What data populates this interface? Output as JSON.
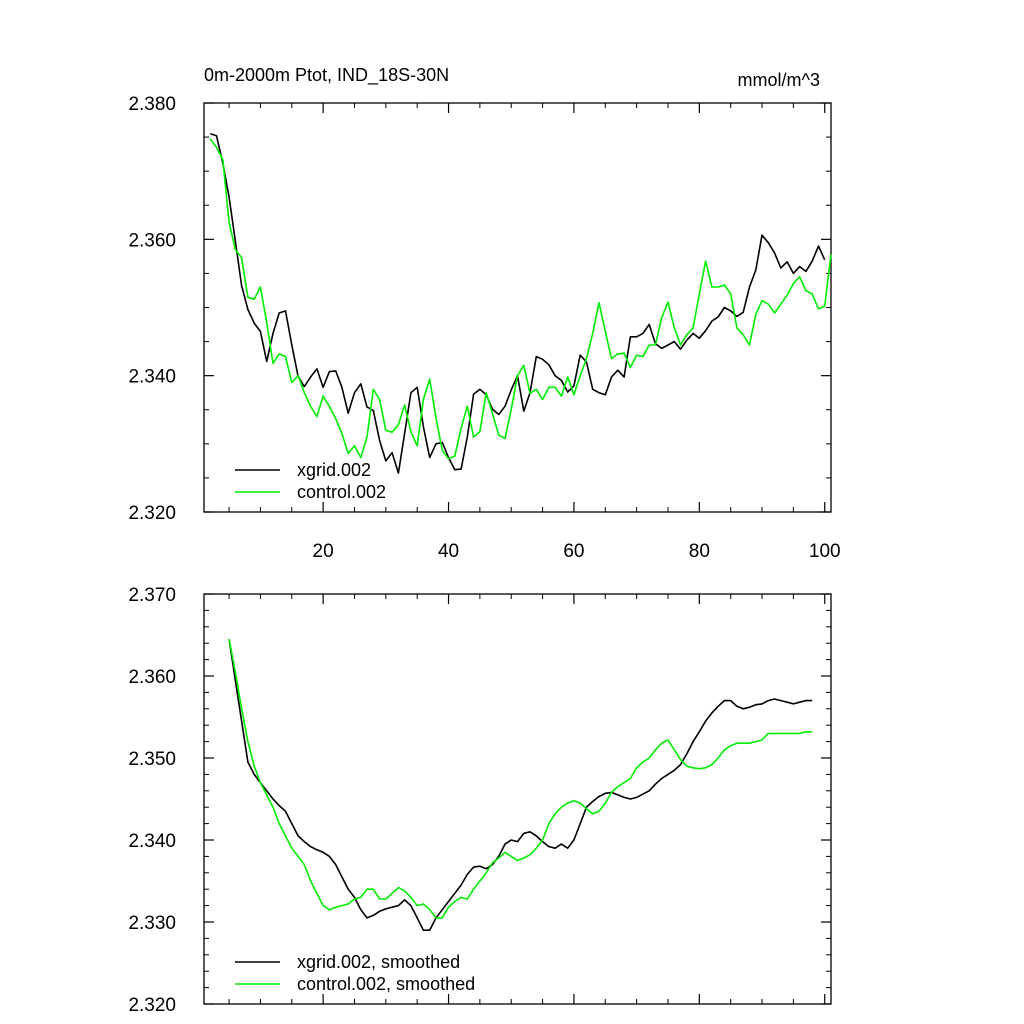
{
  "colors": {
    "xgrid": "#000000",
    "control": "#00ee00",
    "axis": "#000000",
    "background": "#ffffff"
  },
  "chart_data": [
    {
      "type": "line",
      "title": "0m-2000m Ptot, IND_18S-30N",
      "units": "mmol/m^3",
      "xlabel": "",
      "ylabel": "",
      "xlim": [
        1,
        101
      ],
      "ylim": [
        2.32,
        2.38
      ],
      "xticks": [
        20,
        40,
        60,
        80,
        100
      ],
      "xtick_labels": [
        "20",
        "40",
        "60",
        "80",
        "100"
      ],
      "yticks": [
        2.32,
        2.34,
        2.36,
        2.38
      ],
      "ytick_labels": [
        "2.320",
        "2.340",
        "2.360",
        "2.380"
      ],
      "legend_position": "bottom-left",
      "series": [
        {
          "name": "xgrid.002",
          "color": "#000000",
          "x": [
            2,
            3,
            4,
            5,
            6,
            7,
            8,
            9,
            10,
            11,
            12,
            13,
            14,
            15,
            16,
            17,
            18,
            19,
            20,
            21,
            22,
            23,
            24,
            25,
            26,
            27,
            28,
            29,
            30,
            31,
            32,
            33,
            34,
            35,
            36,
            37,
            38,
            39,
            40,
            41,
            42,
            43,
            44,
            45,
            46,
            47,
            48,
            49,
            50,
            51,
            52,
            53,
            54,
            55,
            56,
            57,
            58,
            59,
            60,
            61,
            62,
            63,
            64,
            65,
            66,
            67,
            68,
            69,
            70,
            71,
            72,
            73,
            74,
            75,
            76,
            77,
            78,
            79,
            80,
            81,
            82,
            83,
            84,
            85,
            86,
            87,
            88,
            89,
            90,
            91,
            92,
            93,
            94,
            95,
            96,
            97,
            98,
            99,
            100
          ],
          "values": [
            2.3755,
            2.3752,
            2.3712,
            2.3662,
            2.3598,
            2.3532,
            2.3497,
            2.3477,
            2.3465,
            2.3421,
            2.3462,
            2.3492,
            2.3495,
            2.3445,
            2.3399,
            2.3384,
            2.3398,
            2.341,
            2.3383,
            2.3406,
            2.3407,
            2.3383,
            2.3345,
            2.3375,
            2.3388,
            2.3354,
            2.3349,
            2.3305,
            2.3275,
            2.3287,
            2.3257,
            2.3315,
            2.3375,
            2.3383,
            2.3325,
            2.328,
            2.33,
            2.3302,
            2.328,
            2.3262,
            2.3263,
            2.331,
            2.3373,
            2.338,
            2.3372,
            2.3351,
            2.3343,
            2.3355,
            2.3379,
            2.34,
            2.3348,
            2.3375,
            2.3428,
            2.3424,
            2.3416,
            2.34,
            2.3393,
            2.3376,
            2.3385,
            2.343,
            2.342,
            2.338,
            2.3375,
            2.3372,
            2.3398,
            2.3408,
            2.3398,
            2.3457,
            2.3457,
            2.3462,
            2.3475,
            2.3447,
            2.344,
            2.3445,
            2.345,
            2.3439,
            2.3452,
            2.3462,
            2.3455,
            2.3466,
            2.348,
            2.3486,
            2.35,
            2.3495,
            2.3487,
            2.3493,
            2.353,
            2.3555,
            2.3606,
            2.3595,
            2.358,
            2.3558,
            2.3567,
            2.355,
            2.356,
            2.3553,
            2.3568,
            2.359,
            2.357
          ]
        },
        {
          "name": "control.002",
          "color": "#00ee00",
          "x": [
            2,
            3,
            4,
            5,
            6,
            7,
            8,
            9,
            10,
            11,
            12,
            13,
            14,
            15,
            16,
            17,
            18,
            19,
            20,
            21,
            22,
            23,
            24,
            25,
            26,
            27,
            28,
            29,
            30,
            31,
            32,
            33,
            34,
            35,
            36,
            37,
            38,
            39,
            40,
            41,
            42,
            43,
            44,
            45,
            46,
            47,
            48,
            49,
            50,
            51,
            52,
            53,
            54,
            55,
            56,
            57,
            58,
            59,
            60,
            61,
            62,
            63,
            64,
            65,
            66,
            67,
            68,
            69,
            70,
            71,
            72,
            73,
            74,
            75,
            76,
            77,
            78,
            79,
            80,
            81,
            82,
            83,
            84,
            85,
            86,
            87,
            88,
            89,
            90,
            91,
            92,
            93,
            94,
            95,
            96,
            97,
            98,
            99,
            100,
            101
          ],
          "values": [
            2.3747,
            2.3735,
            2.3717,
            2.3625,
            2.3585,
            2.3573,
            2.3515,
            2.3512,
            2.353,
            2.3478,
            2.3418,
            2.3432,
            2.3428,
            2.339,
            2.34,
            2.3375,
            2.3355,
            2.334,
            2.337,
            2.3355,
            2.3337,
            2.3315,
            2.3286,
            2.3297,
            2.328,
            2.331,
            2.338,
            2.3365,
            2.332,
            2.3317,
            2.3328,
            2.3357,
            2.3318,
            2.3297,
            2.3365,
            2.3395,
            2.3338,
            2.329,
            2.3278,
            2.3282,
            2.3323,
            2.3355,
            2.331,
            2.3318,
            2.3375,
            2.3345,
            2.3313,
            2.3308,
            2.335,
            2.34,
            2.3415,
            2.3374,
            2.338,
            2.3365,
            2.3383,
            2.3383,
            2.337,
            2.3398,
            2.3372,
            2.34,
            2.3425,
            2.3462,
            2.3507,
            2.3465,
            2.3425,
            2.3432,
            2.3433,
            2.3412,
            2.343,
            2.3428,
            2.3445,
            2.3445,
            2.3485,
            2.3508,
            2.347,
            2.3445,
            2.346,
            2.347,
            2.352,
            2.3568,
            2.353,
            2.353,
            2.3533,
            2.352,
            2.347,
            2.346,
            2.3445,
            2.349,
            2.351,
            2.3505,
            2.3492,
            2.3505,
            2.3518,
            2.3535,
            2.3545,
            2.3525,
            2.352,
            2.3498,
            2.3502,
            2.3578
          ]
        }
      ]
    },
    {
      "type": "line",
      "title": "",
      "xlabel": "",
      "ylabel": "",
      "xlim": [
        1,
        101
      ],
      "ylim": [
        2.32,
        2.37
      ],
      "xticks": [
        20,
        40,
        60,
        80,
        100
      ],
      "xtick_labels": [],
      "yticks": [
        2.32,
        2.33,
        2.34,
        2.35,
        2.36,
        2.37
      ],
      "ytick_labels": [
        "2.320",
        "2.330",
        "2.340",
        "2.350",
        "2.360",
        "2.370"
      ],
      "legend_position": "bottom-left",
      "series": [
        {
          "name": "xgrid.002, smoothed",
          "color": "#000000",
          "x": [
            5,
            6,
            7,
            8,
            9,
            10,
            11,
            12,
            13,
            14,
            15,
            16,
            17,
            18,
            19,
            20,
            21,
            22,
            23,
            24,
            25,
            26,
            27,
            28,
            29,
            30,
            31,
            32,
            33,
            34,
            35,
            36,
            37,
            38,
            39,
            40,
            41,
            42,
            43,
            44,
            45,
            46,
            47,
            48,
            49,
            50,
            51,
            52,
            53,
            54,
            55,
            56,
            57,
            58,
            59,
            60,
            61,
            62,
            63,
            64,
            65,
            66,
            67,
            68,
            69,
            70,
            71,
            72,
            73,
            74,
            75,
            76,
            77,
            78,
            79,
            80,
            81,
            82,
            83,
            84,
            85,
            86,
            87,
            88,
            89,
            90,
            91,
            92,
            93,
            94,
            95,
            96,
            97,
            98
          ],
          "values": [
            2.3645,
            2.3595,
            2.3545,
            2.3495,
            2.348,
            2.347,
            2.346,
            2.345,
            2.3442,
            2.3435,
            2.342,
            2.3405,
            2.3398,
            2.3392,
            2.3388,
            2.3385,
            2.338,
            2.337,
            2.3355,
            2.334,
            2.333,
            2.3315,
            2.3305,
            2.3308,
            2.3313,
            2.3316,
            2.3318,
            2.332,
            2.3327,
            2.332,
            2.3305,
            2.329,
            2.329,
            2.3305,
            2.3315,
            2.3325,
            2.3335,
            2.3345,
            2.3358,
            2.3367,
            2.3368,
            2.3365,
            2.337,
            2.338,
            2.3395,
            2.34,
            2.3398,
            2.3408,
            2.341,
            2.3405,
            2.3398,
            2.3392,
            2.339,
            2.3395,
            2.339,
            2.34,
            2.342,
            2.344,
            2.3447,
            2.3453,
            2.3457,
            2.3458,
            2.3455,
            2.3452,
            2.345,
            2.3452,
            2.3456,
            2.346,
            2.3468,
            2.3475,
            2.348,
            2.3485,
            2.3492,
            2.3505,
            2.352,
            2.3532,
            2.3545,
            2.3555,
            2.3563,
            2.357,
            2.357,
            2.3563,
            2.356,
            2.3562,
            2.3565,
            2.3566,
            2.357,
            2.3572,
            2.357,
            2.3568,
            2.3566,
            2.3568,
            2.357,
            2.357
          ]
        },
        {
          "name": "control.002, smoothed",
          "color": "#00ee00",
          "x": [
            5,
            6,
            7,
            8,
            9,
            10,
            11,
            12,
            13,
            14,
            15,
            16,
            17,
            18,
            19,
            20,
            21,
            22,
            23,
            24,
            25,
            26,
            27,
            28,
            29,
            30,
            31,
            32,
            33,
            34,
            35,
            36,
            37,
            38,
            39,
            40,
            41,
            42,
            43,
            44,
            45,
            46,
            47,
            48,
            49,
            50,
            51,
            52,
            53,
            54,
            55,
            56,
            57,
            58,
            59,
            60,
            61,
            62,
            63,
            64,
            65,
            66,
            67,
            68,
            69,
            70,
            71,
            72,
            73,
            74,
            75,
            76,
            77,
            78,
            79,
            80,
            81,
            82,
            83,
            84,
            85,
            86,
            87,
            88,
            89,
            90,
            91,
            92,
            93,
            94,
            95,
            96,
            97,
            98
          ],
          "values": [
            2.3645,
            2.3605,
            2.356,
            2.352,
            2.349,
            2.347,
            2.3455,
            2.344,
            2.342,
            2.3405,
            2.339,
            2.338,
            2.337,
            2.335,
            2.3335,
            2.332,
            2.3315,
            2.3318,
            2.332,
            2.3322,
            2.3328,
            2.333,
            2.334,
            2.334,
            2.3328,
            2.3328,
            2.3335,
            2.3342,
            2.3338,
            2.333,
            2.332,
            2.3322,
            2.3315,
            2.3305,
            2.3305,
            2.3318,
            2.3325,
            2.333,
            2.3328,
            2.334,
            2.335,
            2.336,
            2.3372,
            2.3378,
            2.3385,
            2.338,
            2.3375,
            2.3378,
            2.3382,
            2.339,
            2.34,
            2.342,
            2.3432,
            2.344,
            2.3445,
            2.3448,
            2.3445,
            2.3438,
            2.3432,
            2.3435,
            2.3445,
            2.3458,
            2.3465,
            2.347,
            2.3475,
            2.3488,
            2.3495,
            2.35,
            2.351,
            2.3518,
            2.3522,
            2.351,
            2.3498,
            2.349,
            2.3488,
            2.3487,
            2.3488,
            2.3492,
            2.35,
            2.351,
            2.3515,
            2.3518,
            2.3518,
            2.3518,
            2.352,
            2.3522,
            2.353,
            2.353,
            2.353,
            2.353,
            2.353,
            2.353,
            2.3532,
            2.3532
          ]
        }
      ]
    }
  ]
}
